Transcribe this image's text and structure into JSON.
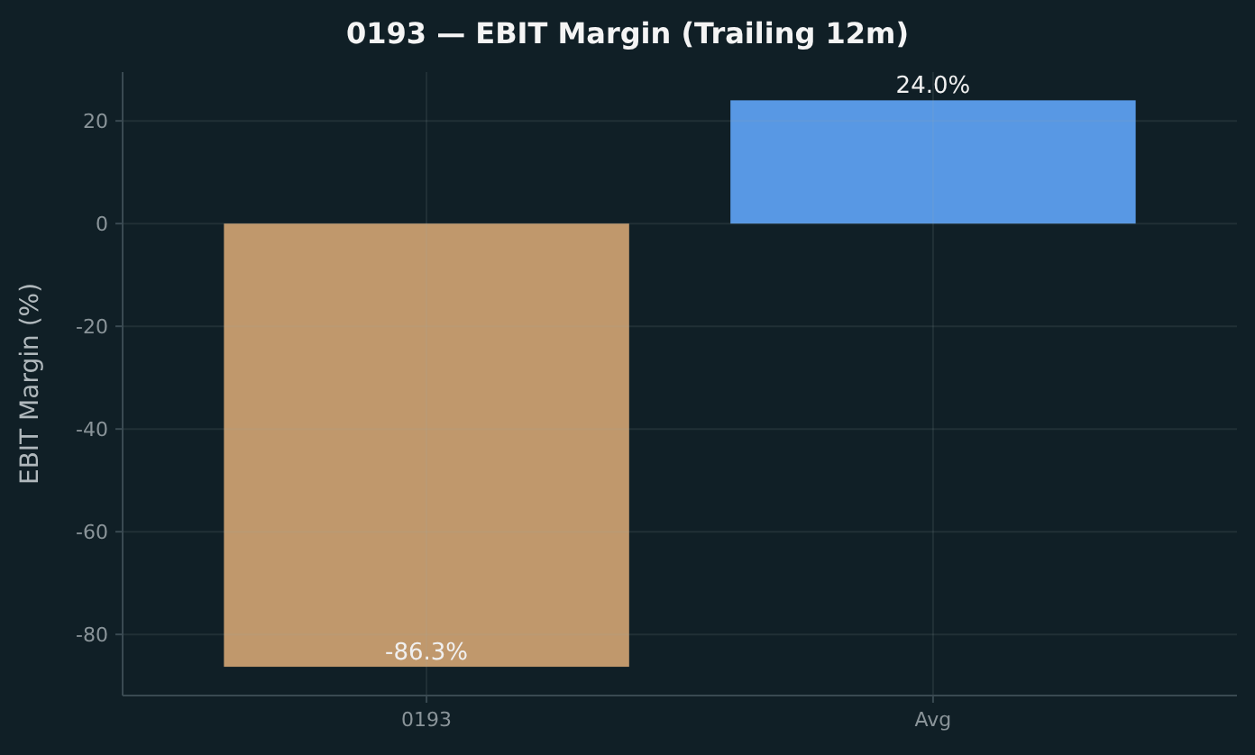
{
  "chart_data": {
    "type": "bar",
    "title": "0193 — EBIT Margin (Trailing 12m)",
    "ylabel": "EBIT Margin (%)",
    "categories": [
      "0193",
      "Avg"
    ],
    "values": [
      -86.3,
      24.0
    ],
    "colors": [
      "#d4a574",
      "#60a5fa"
    ],
    "value_labels": [
      "-86.3%",
      "24.0%"
    ],
    "ylim": [
      -91.9,
      29.5
    ],
    "yticks": [
      -80,
      -60,
      -40,
      -20,
      0,
      20
    ],
    "grid": true
  }
}
